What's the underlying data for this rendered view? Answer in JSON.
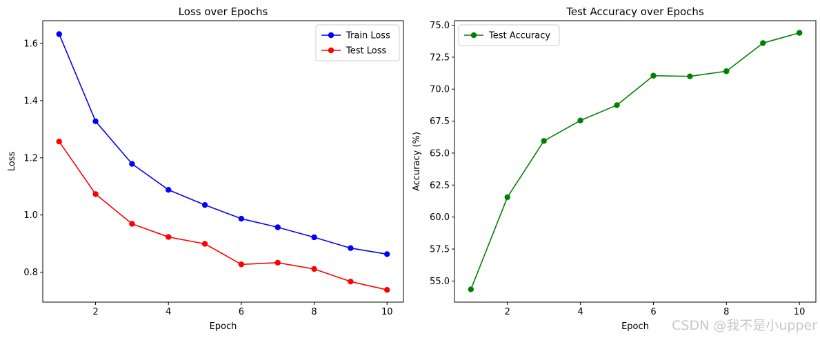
{
  "watermark": "CSDN @我不是小upper",
  "chart_data": [
    {
      "type": "line",
      "title": "Loss over Epochs",
      "xlabel": "Epoch",
      "ylabel": "Loss",
      "x": [
        1,
        2,
        3,
        4,
        5,
        6,
        7,
        8,
        9,
        10
      ],
      "xlim": [
        0.55,
        10.45
      ],
      "ylim": [
        0.695,
        1.68
      ],
      "xticks": [
        2,
        4,
        6,
        8,
        10
      ],
      "yticks": [
        0.8,
        1.0,
        1.2,
        1.4,
        1.6
      ],
      "ytick_labels": [
        "0.8",
        "1.0",
        "1.2",
        "1.4",
        "1.6"
      ],
      "grid": false,
      "legend": "top-right",
      "series": [
        {
          "name": "Train Loss",
          "color": "#0000ff",
          "marker": "circle",
          "values": [
            1.633,
            1.328,
            1.179,
            1.088,
            1.035,
            0.987,
            0.957,
            0.922,
            0.884,
            0.863
          ]
        },
        {
          "name": "Test Loss",
          "color": "#ff0000",
          "marker": "circle",
          "values": [
            1.257,
            1.073,
            0.969,
            0.923,
            0.899,
            0.827,
            0.833,
            0.811,
            0.767,
            0.738
          ]
        }
      ]
    },
    {
      "type": "line",
      "title": "Test Accuracy over Epochs",
      "xlabel": "Epoch",
      "ylabel": "Accuracy (%)",
      "x": [
        1,
        2,
        3,
        4,
        5,
        6,
        7,
        8,
        9,
        10
      ],
      "xlim": [
        0.55,
        10.45
      ],
      "ylim": [
        53.35,
        75.35
      ],
      "xticks": [
        2,
        4,
        6,
        8,
        10
      ],
      "yticks": [
        55.0,
        57.5,
        60.0,
        62.5,
        65.0,
        67.5,
        70.0,
        72.5,
        75.0
      ],
      "ytick_labels": [
        "55.0",
        "57.5",
        "60.0",
        "62.5",
        "65.0",
        "67.5",
        "70.0",
        "72.5",
        "75.0"
      ],
      "grid": false,
      "legend": "top-left",
      "series": [
        {
          "name": "Test Accuracy",
          "color": "#008000",
          "marker": "circle",
          "values": [
            54.35,
            61.55,
            65.95,
            67.55,
            68.75,
            71.05,
            71.0,
            71.4,
            73.6,
            74.4
          ]
        }
      ]
    }
  ]
}
